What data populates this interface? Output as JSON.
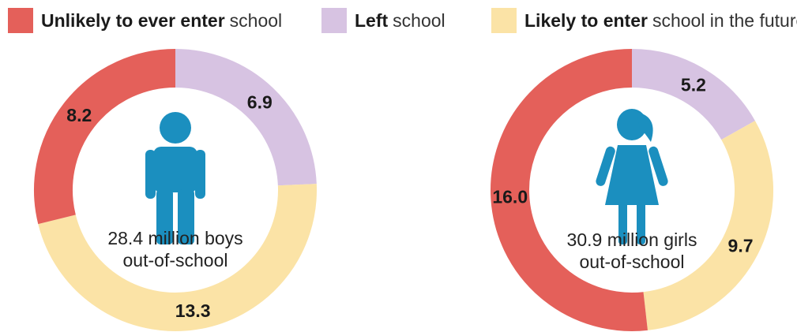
{
  "legend": [
    {
      "bold": "Unlikely to ever enter",
      "light": "school",
      "color": "#e4605a"
    },
    {
      "bold": "Left",
      "light": "school",
      "color": "#d7c3e2"
    },
    {
      "bold": "Likely to enter",
      "light": "school in the future",
      "color": "#fbe3a6"
    }
  ],
  "chart_data": [
    {
      "type": "pie",
      "categories": [
        "Unlikely to ever enter school",
        "Left school",
        "Likely to enter school in the future"
      ],
      "values": [
        8.2,
        6.9,
        13.3
      ],
      "labels": [
        "8.2",
        "6.9",
        "13.3"
      ],
      "colors": [
        "#e4605a",
        "#d7c3e2",
        "#fbe3a6"
      ],
      "caption": [
        "28.4 million boys",
        "out-of-school"
      ],
      "icon": "boy-icon"
    },
    {
      "type": "pie",
      "categories": [
        "Unlikely to ever enter school",
        "Left school",
        "Likely to enter school in the future"
      ],
      "values": [
        16.0,
        5.2,
        9.7
      ],
      "labels": [
        "16.0",
        "5.2",
        "9.7"
      ],
      "colors": [
        "#e4605a",
        "#d7c3e2",
        "#fbe3a6"
      ],
      "caption": [
        "30.9 million girls",
        "out-of-school"
      ],
      "icon": "girl-icon"
    }
  ],
  "icon_color": "#1b8fbf"
}
